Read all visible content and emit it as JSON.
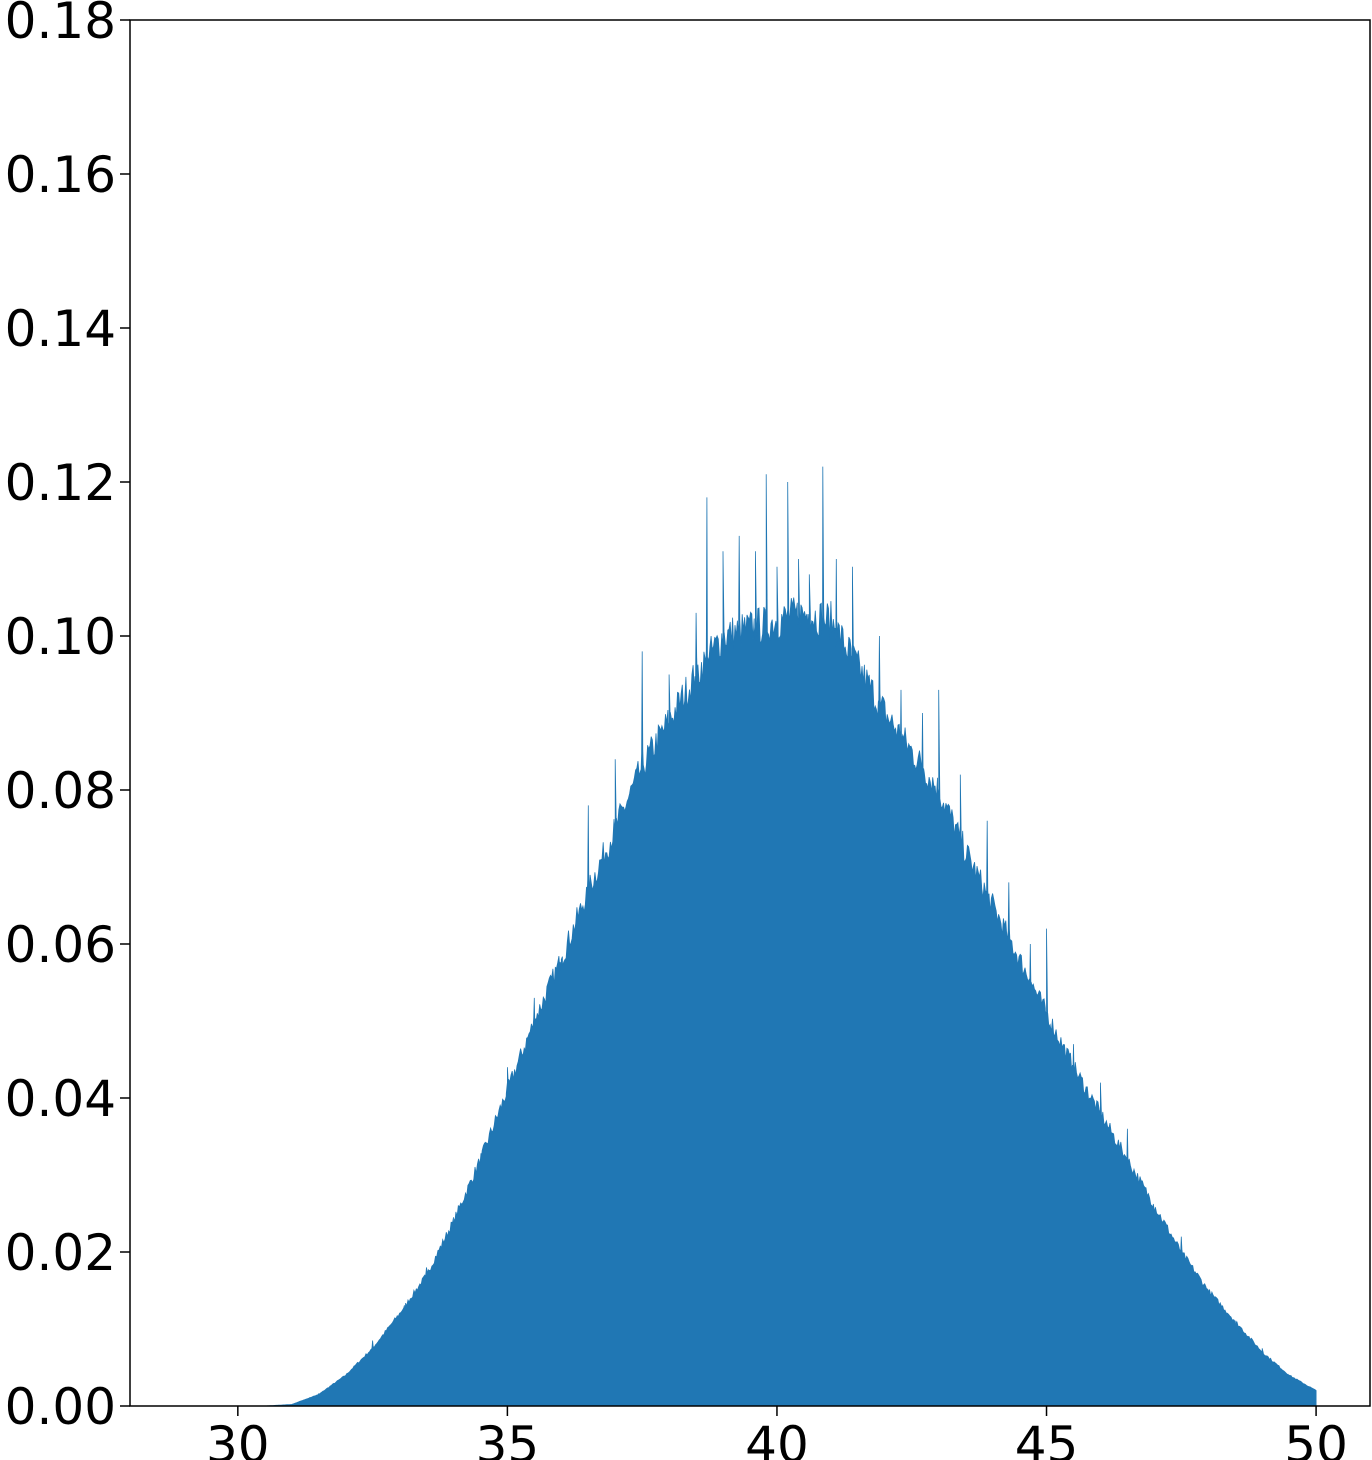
{
  "chart_data": {
    "type": "area",
    "title": "",
    "xlabel": "",
    "ylabel": "",
    "xlim": [
      28,
      51
    ],
    "ylim": [
      0,
      0.18
    ],
    "x_ticks": [
      "30",
      "35",
      "40",
      "45",
      "50"
    ],
    "y_ticks": [
      "0.00",
      "0.02",
      "0.04",
      "0.06",
      "0.08",
      "0.10",
      "0.12",
      "0.14",
      "0.16",
      "0.18"
    ],
    "grid": false,
    "legend": "none",
    "color": "#2077b4",
    "series": [
      {
        "x": [
          30.0,
          30.5,
          31.0,
          31.5,
          32.0,
          32.5,
          33.0,
          33.5,
          34.0,
          34.5,
          35.0,
          35.5,
          36.0,
          36.5,
          37.0,
          37.5,
          38.0,
          38.5,
          39.0,
          39.5,
          40.0,
          40.5,
          41.0,
          41.5,
          42.0,
          42.5,
          43.0,
          43.5,
          44.0,
          44.5,
          45.0,
          45.5,
          46.0,
          46.5,
          47.0,
          47.5,
          48.0,
          48.5,
          49.0,
          49.5,
          50.0
        ],
        "y": [
          0.0,
          0.0,
          0.0002,
          0.0015,
          0.004,
          0.0075,
          0.012,
          0.017,
          0.024,
          0.032,
          0.041,
          0.05,
          0.058,
          0.067,
          0.075,
          0.083,
          0.089,
          0.095,
          0.1,
          0.101,
          0.102,
          0.103,
          0.102,
          0.096,
          0.09,
          0.085,
          0.08,
          0.072,
          0.065,
          0.058,
          0.051,
          0.044,
          0.038,
          0.032,
          0.026,
          0.02,
          0.015,
          0.011,
          0.007,
          0.004,
          0.002
        ],
        "spikes": [
          [
            31.5,
            0.0016
          ],
          [
            32.5,
            0.0085
          ],
          [
            33.1,
            0.012
          ],
          [
            33.5,
            0.018
          ],
          [
            34.0,
            0.023
          ],
          [
            34.5,
            0.032
          ],
          [
            35.0,
            0.044
          ],
          [
            35.5,
            0.053
          ],
          [
            36.0,
            0.058
          ],
          [
            36.5,
            0.078
          ],
          [
            37.0,
            0.084
          ],
          [
            37.5,
            0.098
          ],
          [
            38.0,
            0.095
          ],
          [
            38.5,
            0.103
          ],
          [
            38.7,
            0.118
          ],
          [
            39.0,
            0.111
          ],
          [
            39.3,
            0.113
          ],
          [
            39.6,
            0.111
          ],
          [
            39.8,
            0.121
          ],
          [
            40.0,
            0.109
          ],
          [
            40.2,
            0.12
          ],
          [
            40.4,
            0.11
          ],
          [
            40.6,
            0.108
          ],
          [
            40.85,
            0.122
          ],
          [
            41.1,
            0.11
          ],
          [
            41.4,
            0.109
          ],
          [
            41.9,
            0.1
          ],
          [
            42.3,
            0.093
          ],
          [
            42.7,
            0.09
          ],
          [
            43.0,
            0.093
          ],
          [
            43.4,
            0.082
          ],
          [
            43.9,
            0.076
          ],
          [
            44.3,
            0.068
          ],
          [
            44.7,
            0.06
          ],
          [
            45.0,
            0.062
          ],
          [
            45.5,
            0.047
          ],
          [
            46.0,
            0.042
          ],
          [
            46.5,
            0.036
          ],
          [
            47.0,
            0.025
          ],
          [
            47.5,
            0.022
          ],
          [
            48.0,
            0.015
          ],
          [
            48.5,
            0.01
          ],
          [
            49.0,
            0.0075
          ],
          [
            49.5,
            0.004
          ]
        ]
      }
    ]
  }
}
